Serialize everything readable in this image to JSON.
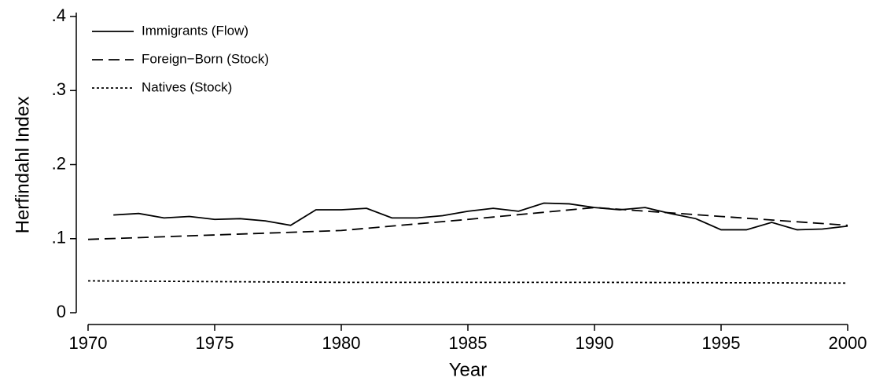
{
  "chart_data": {
    "type": "line",
    "xlabel": "Year",
    "ylabel": "Herfindahl Index",
    "xlim": [
      1970,
      2000
    ],
    "ylim": [
      0,
      0.4
    ],
    "xticks": [
      1970,
      1975,
      1980,
      1985,
      1990,
      1995,
      2000
    ],
    "yticks": [
      0,
      {
        "value": 0.1,
        "label": ".1"
      },
      {
        "value": 0.2,
        "label": ".2"
      },
      {
        "value": 0.3,
        "label": ".3"
      },
      {
        "value": 0.4,
        "label": ".4"
      }
    ],
    "grid": false,
    "legend": "top-left",
    "series": [
      {
        "name": "Immigrants (Flow)",
        "color": "#000000",
        "line_style": "solid",
        "x": [
          1971,
          1972,
          1973,
          1974,
          1975,
          1976,
          1977,
          1978,
          1979,
          1980,
          1981,
          1982,
          1983,
          1984,
          1985,
          1986,
          1987,
          1988,
          1989,
          1990,
          1991,
          1992,
          1993,
          1994,
          1995,
          1996,
          1997,
          1998,
          1999,
          2000
        ],
        "values": [
          0.132,
          0.134,
          0.128,
          0.13,
          0.126,
          0.127,
          0.124,
          0.118,
          0.139,
          0.139,
          0.141,
          0.128,
          0.128,
          0.131,
          0.137,
          0.141,
          0.137,
          0.148,
          0.147,
          0.142,
          0.139,
          0.142,
          0.134,
          0.127,
          0.112,
          0.112,
          0.122,
          0.112,
          0.113,
          0.117
        ]
      },
      {
        "name": "Foreign−Born (Stock)",
        "color": "#000000",
        "line_style": "dashed",
        "x": [
          1970,
          1975,
          1980,
          1985,
          1990,
          1995,
          2000
        ],
        "values": [
          0.099,
          0.105,
          0.111,
          0.126,
          0.142,
          0.13,
          0.118
        ]
      },
      {
        "name": "Natives (Stock)",
        "color": "#000000",
        "line_style": "dotted",
        "x": [
          1970,
          1980,
          1990,
          2000
        ],
        "values": [
          0.043,
          0.041,
          0.041,
          0.04
        ]
      }
    ]
  }
}
